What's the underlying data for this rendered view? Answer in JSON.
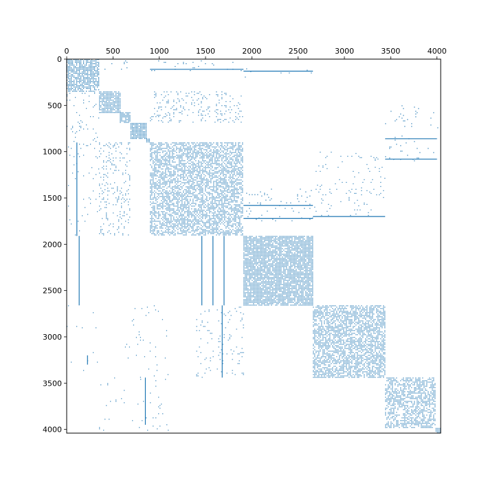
{
  "chart_data": {
    "type": "heatmap",
    "subtype": "sparsity-pattern",
    "title": "",
    "xlabel": "",
    "ylabel": "",
    "matrix_size": 4040,
    "xlim": [
      0,
      4040
    ],
    "ylim": [
      4040,
      0
    ],
    "x_axis_position": "top",
    "x_ticks": [
      0,
      500,
      1000,
      1500,
      2000,
      2500,
      3000,
      3500,
      4000
    ],
    "y_ticks": [
      0,
      500,
      1000,
      1500,
      2000,
      2500,
      3000,
      3500,
      4000
    ],
    "x_tick_labels": [
      "0",
      "500",
      "1000",
      "1500",
      "2000",
      "2500",
      "3000",
      "3500",
      "4000"
    ],
    "y_tick_labels": [
      "0",
      "500",
      "1000",
      "1500",
      "2000",
      "2500",
      "3000",
      "3500",
      "4000"
    ],
    "grid": false,
    "legend": "none",
    "marker_color": "#1f77b4",
    "diagonal_blocks": [
      {
        "start": 0,
        "end": 350,
        "density": 0.75
      },
      {
        "start": 350,
        "end": 575,
        "density": 0.85
      },
      {
        "start": 575,
        "end": 690,
        "density": 0.9
      },
      {
        "start": 690,
        "end": 860,
        "density": 0.9
      },
      {
        "start": 860,
        "end": 900,
        "density": 0.95
      },
      {
        "start": 900,
        "end": 1910,
        "density": 0.6
      },
      {
        "start": 1910,
        "end": 2660,
        "density": 0.85
      },
      {
        "start": 2660,
        "end": 3440,
        "density": 0.65
      },
      {
        "start": 3440,
        "end": 3985,
        "density": 0.55
      },
      {
        "start": 3985,
        "end": 4040,
        "density": 0.9
      }
    ],
    "off_diagonal_regions": [
      {
        "x": [
          350,
          670
        ],
        "y": [
          0,
          110
        ],
        "density": 0.05
      },
      {
        "x": [
          900,
          1910
        ],
        "y": [
          0,
          120
        ],
        "density": 0.03
      },
      {
        "x": [
          1910,
          2660
        ],
        "y": [
          100,
          200
        ],
        "density": 0.02
      },
      {
        "x": [
          0,
          350
        ],
        "y": [
          350,
          900
        ],
        "density": 0.06
      },
      {
        "x": [
          900,
          1910
        ],
        "y": [
          350,
          690
        ],
        "density": 0.12
      },
      {
        "x": [
          350,
          690
        ],
        "y": [
          900,
          1910
        ],
        "density": 0.15
      },
      {
        "x": [
          0,
          350
        ],
        "y": [
          900,
          1910
        ],
        "density": 0.03
      },
      {
        "x": [
          2660,
          3440
        ],
        "y": [
          1000,
          1700
        ],
        "density": 0.04
      },
      {
        "x": [
          1910,
          2660
        ],
        "y": [
          1400,
          1750
        ],
        "density": 0.04
      },
      {
        "x": [
          3440,
          4040
        ],
        "y": [
          500,
          1100
        ],
        "density": 0.03
      },
      {
        "x": [
          1400,
          1910
        ],
        "y": [
          2660,
          3440
        ],
        "density": 0.05
      },
      {
        "x": [
          0,
          350
        ],
        "y": [
          2660,
          3440
        ],
        "density": 0.01
      },
      {
        "x": [
          600,
          1100
        ],
        "y": [
          2660,
          3440
        ],
        "density": 0.02
      },
      {
        "x": [
          350,
          1100
        ],
        "y": [
          3440,
          4040
        ],
        "density": 0.02
      }
    ],
    "vertical_lines": [
      {
        "x": 110,
        "y": [
          900,
          1910
        ]
      },
      {
        "x": 1680,
        "y": [
          2660,
          3440
        ]
      },
      {
        "x": 135,
        "y": [
          1910,
          2660
        ]
      },
      {
        "x": 1460,
        "y": [
          1910,
          2660
        ]
      },
      {
        "x": 1580,
        "y": [
          1910,
          2660
        ]
      },
      {
        "x": 1700,
        "y": [
          1910,
          2660
        ]
      },
      {
        "x": 225,
        "y": [
          3200,
          3300
        ]
      },
      {
        "x": 850,
        "y": [
          3440,
          3950
        ]
      }
    ],
    "horizontal_lines": [
      {
        "y": 110,
        "x": [
          900,
          1910
        ]
      },
      {
        "y": 130,
        "x": [
          1910,
          2660
        ]
      },
      {
        "y": 1700,
        "x": [
          2660,
          3440
        ]
      },
      {
        "y": 1580,
        "x": [
          1910,
          2660
        ]
      },
      {
        "y": 1720,
        "x": [
          1910,
          2660
        ]
      },
      {
        "y": 860,
        "x": [
          3440,
          4000
        ]
      },
      {
        "y": 1080,
        "x": [
          3440,
          4000
        ]
      }
    ]
  }
}
